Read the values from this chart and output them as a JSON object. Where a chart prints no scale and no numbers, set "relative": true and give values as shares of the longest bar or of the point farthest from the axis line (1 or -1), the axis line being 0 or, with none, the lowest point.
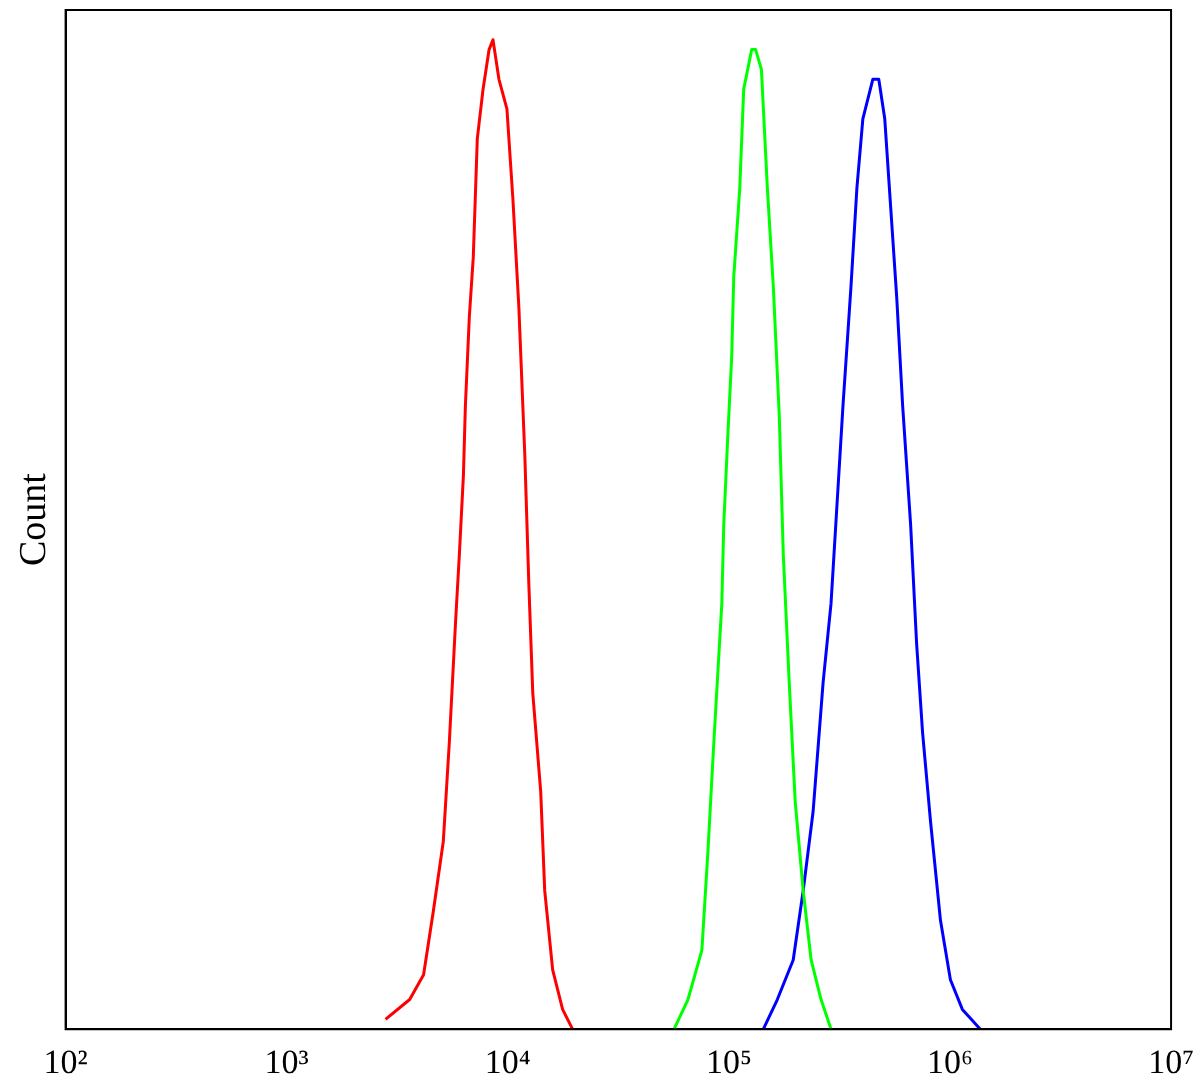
{
  "chart_data": {
    "type": "line",
    "ylabel": "Count",
    "relative": true,
    "log": "x",
    "grid": false,
    "legend": false,
    "marker": "none",
    "line_style": "solid",
    "tick_labels": "x",
    "xlim": [
      100,
      10000000
    ],
    "xticks": [
      {
        "value": 100,
        "label": "10²"
      },
      {
        "value": 1000,
        "label": "10³"
      },
      {
        "value": 10000,
        "label": "10⁴"
      },
      {
        "value": 100000,
        "label": "10⁵"
      },
      {
        "value": 1000000,
        "label": "10⁶"
      },
      {
        "value": 10000000,
        "label": "10⁷"
      }
    ],
    "series": [
      {
        "color": "#ff0000",
        "x": [
          2800,
          3600,
          4160,
          4610,
          5110,
          5440,
          5800,
          6040,
          6300,
          6430,
          6700,
          6980,
          7280,
          7730,
          8230,
          8570,
          9120,
          9910,
          10540,
          11220,
          11940,
          12450,
          12970,
          14090,
          14690,
          15960,
          17700,
          19630
        ],
        "values": [
          0.01,
          0.03,
          0.055,
          0.12,
          0.19,
          0.29,
          0.41,
          0.48,
          0.56,
          0.63,
          0.72,
          0.78,
          0.9,
          0.95,
          0.99,
          1,
          0.96,
          0.93,
          0.84,
          0.73,
          0.58,
          0.45,
          0.34,
          0.24,
          0.14,
          0.06,
          0.02,
          0
        ]
      },
      {
        "color": "#00ff00",
        "x": [
          56500,
          65300,
          75500,
          80400,
          85500,
          92900,
          94800,
          98900,
          103000,
          105200,
          112000,
          116700,
          126800,
          132100,
          140300,
          149300,
          158900,
          169000,
          176200,
          187500,
          199500,
          216800,
          235500,
          261200,
          289700
        ],
        "values": [
          0,
          0.03,
          0.08,
          0.18,
          0.29,
          0.43,
          0.51,
          0.6,
          0.68,
          0.76,
          0.85,
          0.95,
          0.99,
          0.99,
          0.97,
          0.85,
          0.75,
          0.62,
          0.48,
          0.35,
          0.23,
          0.14,
          0.07,
          0.03,
          0
        ]
      },
      {
        "color": "#0000ff",
        "x": [
          143200,
          165600,
          195400,
          216800,
          240400,
          266700,
          289700,
          308300,
          328100,
          356500,
          379300,
          403600,
          447700,
          476400,
          507000,
          539500,
          574100,
          610900,
          663700,
          706300,
          751600,
          816600,
          905700,
          1004600,
          1137600,
          1371000
        ],
        "values": [
          0,
          0.03,
          0.07,
          0.14,
          0.22,
          0.35,
          0.43,
          0.53,
          0.63,
          0.75,
          0.85,
          0.92,
          0.96,
          0.96,
          0.92,
          0.83,
          0.74,
          0.63,
          0.51,
          0.39,
          0.3,
          0.21,
          0.11,
          0.05,
          0.02,
          0
        ]
      }
    ]
  }
}
